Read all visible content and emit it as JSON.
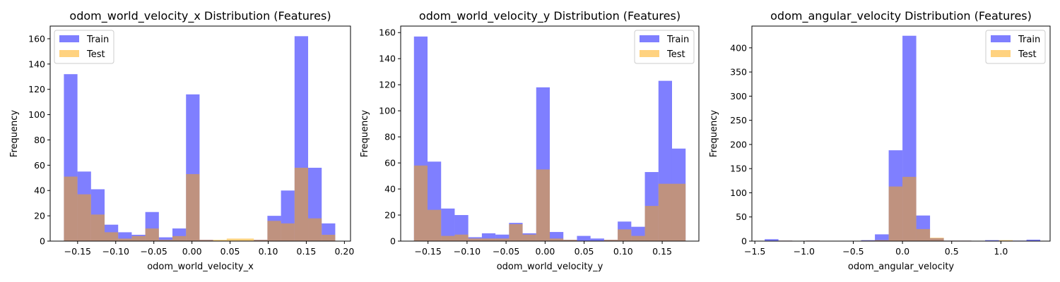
{
  "colors": {
    "train": "#0000ff",
    "test": "#ffa500",
    "overlap": "#c0906f"
  },
  "chart_data": [
    {
      "type": "bar",
      "subtype": "overlaid-histogram",
      "title": "odom_world_velocity_x Distribution (Features)",
      "xlabel": "odom_world_velocity_x",
      "ylabel": "Frequency",
      "xlim": [
        -0.186,
        0.208
      ],
      "ylim": [
        0,
        170
      ],
      "xticks": [
        -0.15,
        -0.1,
        -0.05,
        0.0,
        0.05,
        0.1,
        0.15,
        0.2
      ],
      "xtick_labels": [
        "−0.15",
        "−0.10",
        "−0.05",
        "0.00",
        "0.05",
        "0.10",
        "0.15",
        "0.20"
      ],
      "yticks": [
        0,
        20,
        40,
        60,
        80,
        100,
        120,
        140,
        160
      ],
      "legend": {
        "position": "upper left",
        "entries": [
          "Train",
          "Test"
        ]
      },
      "bin_edges": [
        -0.168,
        -0.1502,
        -0.1324,
        -0.1146,
        -0.0968,
        -0.079,
        -0.0612,
        -0.0434,
        -0.0256,
        -0.0078,
        0.01,
        0.0278,
        0.0456,
        0.0634,
        0.0812,
        0.099,
        0.1168,
        0.1346,
        0.1524,
        0.1702,
        0.188
      ],
      "series": [
        {
          "name": "Train",
          "values": [
            132,
            55,
            41,
            13,
            7,
            5,
            23,
            3,
            10,
            116,
            1,
            0,
            0,
            0,
            1,
            20,
            40,
            162,
            58,
            14
          ]
        },
        {
          "name": "Test",
          "values": [
            51,
            37,
            21,
            7,
            2,
            4,
            10,
            1,
            4,
            53,
            1,
            1,
            2,
            2,
            1,
            16,
            14,
            58,
            18,
            5
          ]
        }
      ]
    },
    {
      "type": "bar",
      "subtype": "overlaid-histogram",
      "title": "odom_world_velocity_y Distribution (Features)",
      "xlabel": "odom_world_velocity_y",
      "ylabel": "Frequency",
      "xlim": [
        -0.185,
        0.197
      ],
      "ylim": [
        0,
        165
      ],
      "xticks": [
        -0.15,
        -0.1,
        -0.05,
        0.0,
        0.05,
        0.1,
        0.15
      ],
      "xtick_labels": [
        "−0.15",
        "−0.10",
        "−0.05",
        "0.00",
        "0.05",
        "0.10",
        "0.15"
      ],
      "yticks": [
        0,
        20,
        40,
        60,
        80,
        100,
        120,
        140,
        160
      ],
      "legend": {
        "position": "upper right",
        "entries": [
          "Train",
          "Test"
        ]
      },
      "bin_edges": [
        -0.168,
        -0.1506,
        -0.1332,
        -0.1158,
        -0.0984,
        -0.081,
        -0.0636,
        -0.0462,
        -0.0288,
        -0.0114,
        0.006,
        0.0234,
        0.0408,
        0.0582,
        0.0756,
        0.093,
        0.1104,
        0.1278,
        0.1452,
        0.1626,
        0.18
      ],
      "series": [
        {
          "name": "Train",
          "values": [
            157,
            61,
            25,
            20,
            3,
            6,
            5,
            14,
            6,
            118,
            7,
            1,
            4,
            2,
            1,
            15,
            11,
            53,
            123,
            71
          ]
        },
        {
          "name": "Test",
          "values": [
            58,
            24,
            4,
            5,
            2,
            2,
            2,
            13,
            5,
            55,
            2,
            1,
            0,
            0,
            1,
            9,
            4,
            27,
            44,
            44
          ]
        }
      ]
    },
    {
      "type": "bar",
      "subtype": "overlaid-histogram",
      "title": "odom_angular_velocity Distribution (Features)",
      "xlabel": "odom_angular_velocity",
      "ylabel": "Frequency",
      "xlim": [
        -1.53,
        1.5
      ],
      "ylim": [
        0,
        445
      ],
      "xticks": [
        -1.5,
        -1.0,
        -0.5,
        0.0,
        0.5,
        1.0
      ],
      "xtick_labels": [
        "−1.5",
        "−1.0",
        "−0.5",
        "0.0",
        "0.5",
        "1.0"
      ],
      "yticks": [
        0,
        50,
        100,
        150,
        200,
        250,
        300,
        350,
        400
      ],
      "legend": {
        "position": "upper right",
        "entries": [
          "Train",
          "Test"
        ]
      },
      "bin_edges": [
        -1.4,
        -1.26,
        -1.12,
        -0.98,
        -0.84,
        -0.7,
        -0.56,
        -0.42,
        -0.28,
        -0.14,
        0.0,
        0.14,
        0.28,
        0.42,
        0.56,
        0.7,
        0.84,
        0.98,
        1.12,
        1.26,
        1.4
      ],
      "series": [
        {
          "name": "Train",
          "values": [
            4,
            1,
            0,
            1,
            0,
            0,
            0,
            2,
            14,
            188,
            425,
            53,
            6,
            1,
            1,
            0,
            2,
            0,
            1,
            3
          ]
        },
        {
          "name": "Test",
          "values": [
            0,
            1,
            0,
            1,
            0,
            0,
            0,
            1,
            2,
            113,
            133,
            25,
            7,
            1,
            1,
            0,
            0,
            2,
            0,
            0
          ]
        }
      ]
    }
  ]
}
